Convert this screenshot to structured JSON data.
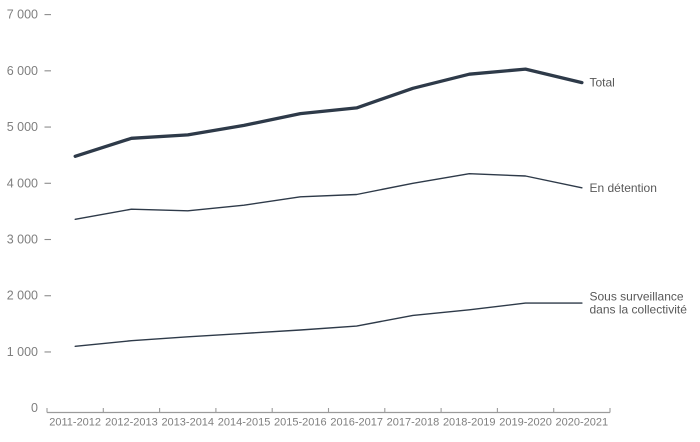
{
  "chart_data": {
    "type": "line",
    "title": "",
    "xlabel": "",
    "ylabel": "",
    "categories": [
      "2011-2012",
      "2012-2013",
      "2013-2014",
      "2014-2015",
      "2015-2016",
      "2016-2017",
      "2017-2018",
      "2018-2019",
      "2019-2020",
      "2020-2021"
    ],
    "series": [
      {
        "name": "Total",
        "label_lines": [
          "Total"
        ],
        "values": [
          4480,
          4800,
          4860,
          5030,
          5240,
          5340,
          5690,
          5940,
          6030,
          5790
        ],
        "weight": "bold"
      },
      {
        "name": "En détention",
        "label_lines": [
          "En détention"
        ],
        "values": [
          3360,
          3540,
          3510,
          3610,
          3760,
          3800,
          4000,
          4170,
          4130,
          3920
        ],
        "weight": "thin"
      },
      {
        "name": "Sous surveillance dans la collectivité",
        "label_lines": [
          "Sous surveillance",
          "dans la collectivité"
        ],
        "values": [
          1100,
          1200,
          1270,
          1330,
          1390,
          1460,
          1650,
          1750,
          1870,
          1870
        ],
        "weight": "thin"
      }
    ],
    "ylim": [
      0,
      7000
    ],
    "ytick_step": 1000,
    "ytick_labels": [
      "0",
      "1 000",
      "2 000",
      "3 000",
      "4 000",
      "5 000",
      "6 000",
      "7 000"
    ],
    "grid": false,
    "legend_position": "right-of-line-end"
  },
  "colors": {
    "series_line": "#2e3a49",
    "series_label": "#595959",
    "axis_line": "#9b9b9b",
    "tick_label": "#7f7f7f",
    "tick_dash": "#8c8c8c",
    "background": "#ffffff"
  }
}
